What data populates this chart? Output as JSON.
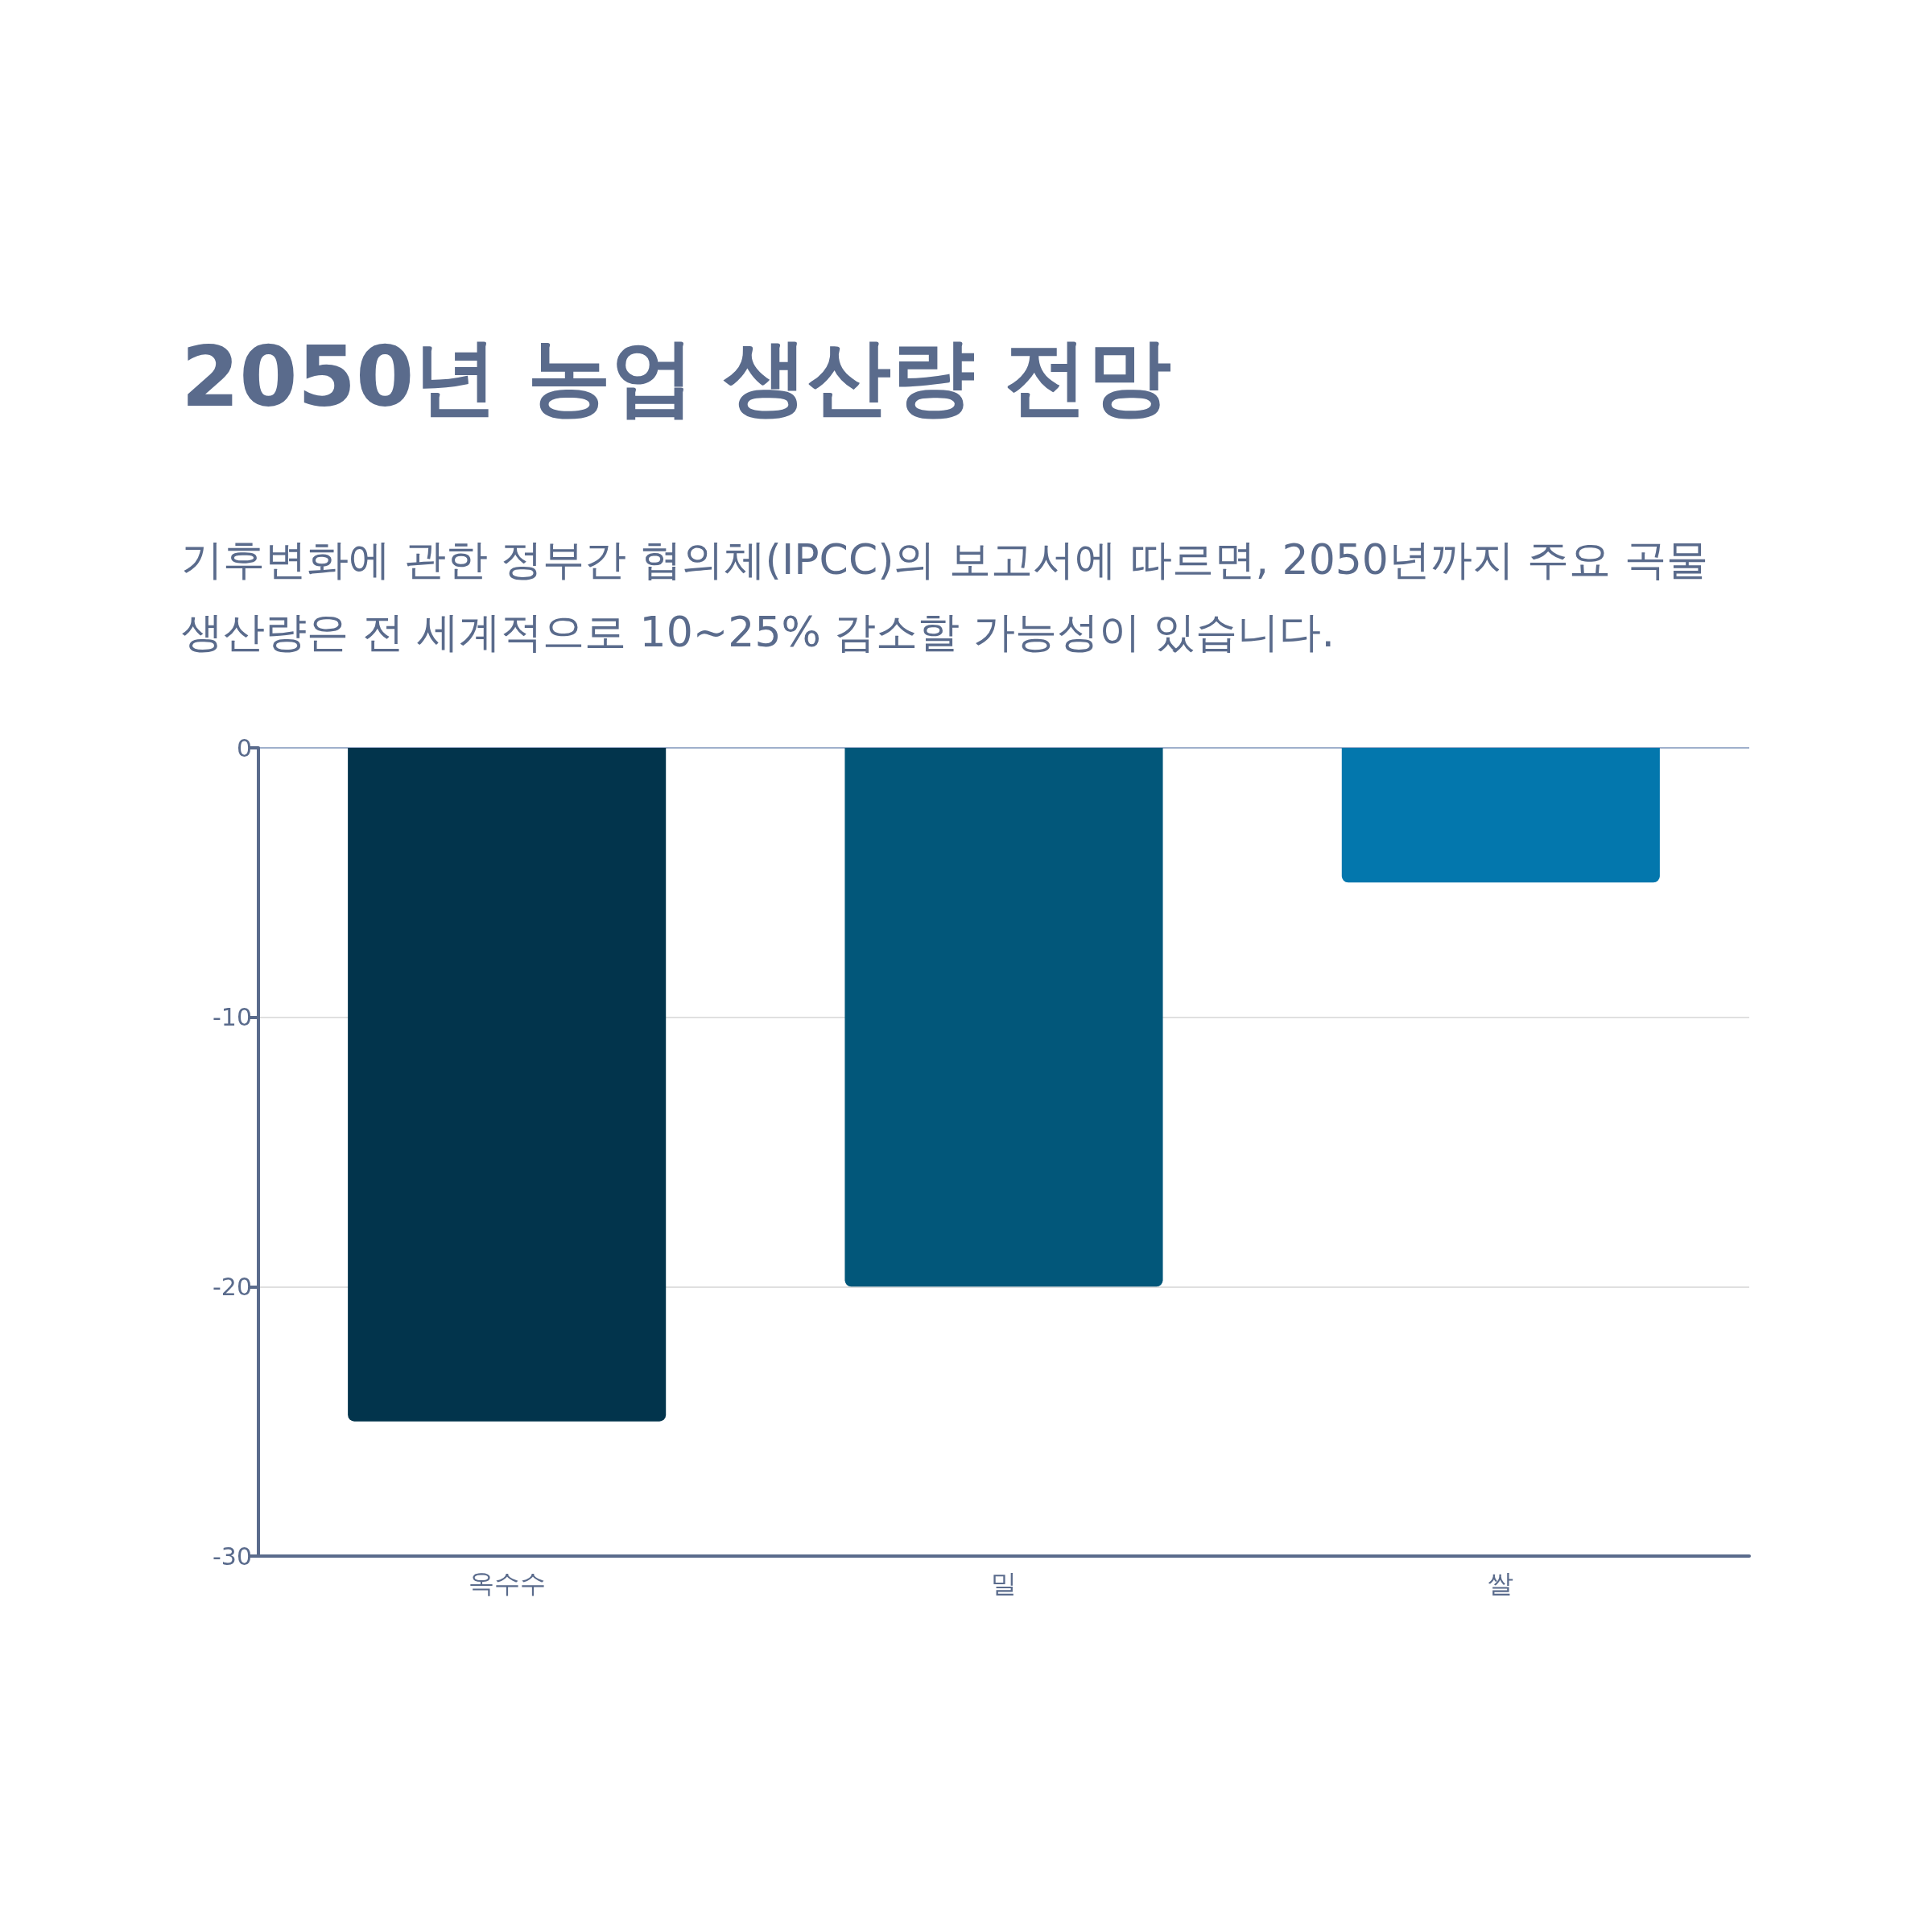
{
  "chart_data": {
    "type": "bar",
    "title": "2050년 농업 생산량 전망",
    "subtitle": "기후변화에 관한 정부간 협의체(IPCC)의 보고서에 따르면, 2050년까지 주요 곡물 생산량은 전 세계적으로 10~25% 감소할 가능성이 있습니다.",
    "categories": [
      "옥수수",
      "밀",
      "쌀"
    ],
    "values": [
      -25,
      -20,
      -5
    ],
    "colors": [
      "#02344c",
      "#02577a",
      "#0377ad"
    ],
    "ylim": [
      -30,
      0
    ],
    "yticks": [
      -30,
      -20,
      -10,
      0
    ],
    "grid": "y"
  }
}
